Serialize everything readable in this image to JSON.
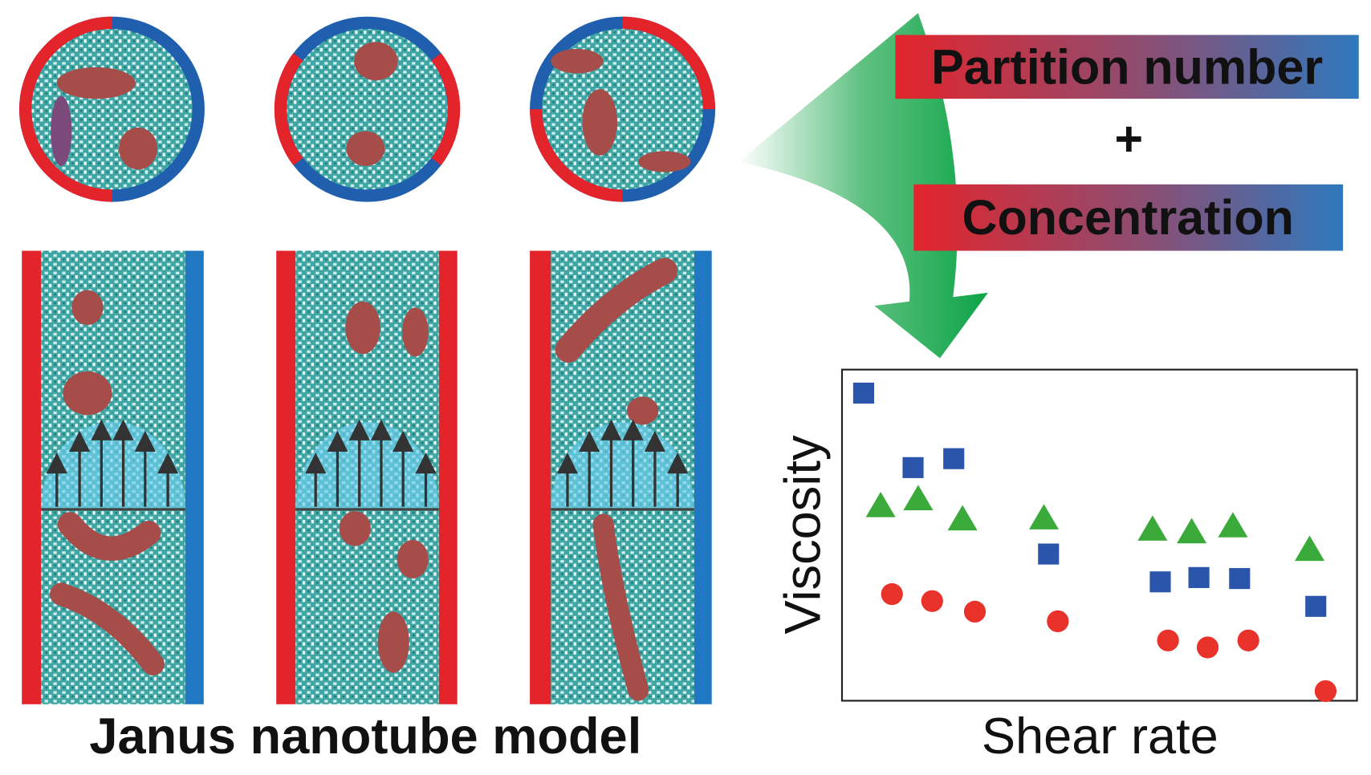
{
  "model_label": "Janus nanotube model",
  "factors": {
    "first": "Partition number",
    "plus": "+",
    "second": "Concentration"
  },
  "chart_data": {
    "type": "scatter",
    "xlabel": "Shear rate",
    "ylabel": "Viscosity",
    "xlim": [
      0,
      100
    ],
    "ylim": [
      0,
      100
    ],
    "series": [
      {
        "color": "#2a55aa",
        "marker": "square",
        "x": [
          4.2,
          13.8,
          21.7,
          40.1,
          61.8,
          69.3,
          77.2,
          92.0
        ],
        "values": [
          92.9,
          70.4,
          73.1,
          44.3,
          35.9,
          37.2,
          36.9,
          28.5
        ]
      },
      {
        "color": "#3aaa3a",
        "marker": "triangle",
        "x": [
          7.5,
          14.8,
          23.4,
          39.2,
          60.3,
          67.9,
          75.9,
          90.8
        ],
        "values": [
          58.6,
          60.7,
          54.6,
          54.9,
          51.5,
          50.7,
          52.5,
          45.4
        ]
      },
      {
        "color": "#e8322a",
        "marker": "circle",
        "x": [
          9.7,
          17.5,
          25.8,
          41.9,
          63.3,
          71.0,
          78.9,
          93.9
        ],
        "values": [
          32.2,
          30.1,
          26.9,
          24.0,
          18.2,
          16.1,
          18.2,
          2.9
        ]
      }
    ]
  }
}
